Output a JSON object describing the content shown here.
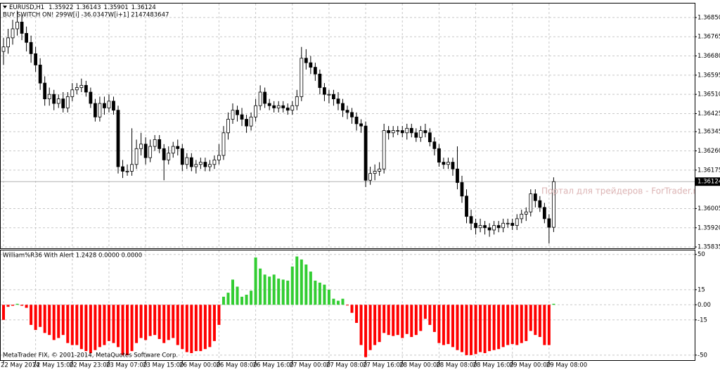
{
  "chart_data": [
    {
      "type": "candlestick",
      "symbol": "EURUSD,H1",
      "subtitle": "BUY SWITCH ON! 299W[i] -36.0347W[i+1] 2147483647",
      "watermark": "Портал для трейдеров - ForTrader.ru",
      "categories": [
        "22 May 2014",
        null,
        null,
        null,
        null,
        null,
        null,
        "22 May 15:00",
        null,
        null,
        null,
        null,
        null,
        null,
        null,
        "22 May 23:00",
        null,
        null,
        null,
        null,
        null,
        null,
        null,
        "23 May 07:00",
        null,
        null,
        null,
        null,
        null,
        null,
        null,
        "23 May 15:00",
        null,
        null,
        null,
        null,
        null,
        null,
        null,
        "26 May 00:00",
        null,
        null,
        null,
        null,
        null,
        null,
        null,
        "26 May 08:00",
        null,
        null,
        null,
        null,
        null,
        null,
        null,
        "26 May 16:00",
        null,
        null,
        null,
        null,
        null,
        null,
        null,
        "27 May 00:00",
        null,
        null,
        null,
        null,
        null,
        null,
        null,
        "27 May 08:00",
        null,
        null,
        null,
        null,
        null,
        null,
        null,
        "27 May 16:00",
        null,
        null,
        null,
        null,
        null,
        null,
        null,
        "28 May 00:00",
        null,
        null,
        null,
        null,
        null,
        null,
        null,
        "28 May 08:00",
        null,
        null,
        null,
        null,
        null,
        null,
        null,
        "28 May 16:00",
        null,
        null,
        null,
        null,
        null,
        null,
        null,
        "29 May 00:00",
        null,
        null,
        null,
        null,
        null,
        null,
        null,
        "29 May 08:00",
        null
      ],
      "open": [
        1.367,
        1.3672,
        1.3676,
        1.368,
        1.3683,
        1.3678,
        1.3674,
        1.3669,
        1.3664,
        1.3656,
        1.3649,
        1.3651,
        1.3647,
        1.3649,
        1.3645,
        1.365,
        1.3653,
        1.3654,
        1.3655,
        1.3652,
        1.3647,
        1.3641,
        1.3647,
        1.3645,
        1.3648,
        1.3644,
        1.3619,
        1.3617,
        1.3617,
        1.362,
        1.3627,
        1.3629,
        1.3623,
        1.3628,
        1.3631,
        1.3627,
        1.3622,
        1.3625,
        1.3628,
        1.3627,
        1.362,
        1.3623,
        1.3619,
        1.362,
        1.3621,
        1.3619,
        1.362,
        1.3622,
        1.3624,
        1.3634,
        1.364,
        1.3644,
        1.3642,
        1.364,
        1.3637,
        1.3641,
        1.3646,
        1.3652,
        1.3647,
        1.3646,
        1.3645,
        1.3646,
        1.3645,
        1.3644,
        1.3646,
        1.365,
        1.3667,
        1.3665,
        1.3663,
        1.366,
        1.3654,
        1.3651,
        1.3651,
        1.3649,
        1.3647,
        1.3644,
        1.3643,
        1.3641,
        1.3638,
        1.3637,
        1.3613,
        1.3616,
        1.3617,
        1.3618,
        1.3635,
        1.3634,
        1.3635,
        1.3635,
        1.3634,
        1.3636,
        1.3634,
        1.3632,
        1.3635,
        1.3634,
        1.363,
        1.3627,
        1.3621,
        1.362,
        1.3621,
        1.3618,
        1.3612,
        1.3606,
        1.3597,
        1.3594,
        1.3592,
        1.3593,
        1.3592,
        1.3591,
        1.3593,
        1.3592,
        1.3594,
        1.3594,
        1.3593,
        1.3596,
        1.3598,
        1.3599,
        1.3607,
        1.3604,
        1.3601,
        1.3596,
        1.35922
      ],
      "high": [
        1.3676,
        1.368,
        1.3684,
        1.3688,
        1.3686,
        1.3681,
        1.3677,
        1.3672,
        1.3667,
        1.3659,
        1.3654,
        1.3653,
        1.3651,
        1.3652,
        1.3652,
        1.3656,
        1.3656,
        1.3658,
        1.3657,
        1.3654,
        1.3649,
        1.365,
        1.365,
        1.3651,
        1.365,
        1.3646,
        1.3622,
        1.362,
        1.3636,
        1.3631,
        1.3634,
        1.3632,
        1.3631,
        1.3633,
        1.3633,
        1.3629,
        1.3628,
        1.363,
        1.3631,
        1.3629,
        1.3625,
        1.3625,
        1.3622,
        1.3623,
        1.3623,
        1.3622,
        1.3624,
        1.3629,
        1.3637,
        1.3643,
        1.3647,
        1.3646,
        1.3645,
        1.3642,
        1.3643,
        1.3649,
        1.3655,
        1.3654,
        1.3649,
        1.3648,
        1.3648,
        1.3648,
        1.3647,
        1.3648,
        1.3653,
        1.3672,
        1.3671,
        1.3668,
        1.3665,
        1.3662,
        1.3656,
        1.3653,
        1.3653,
        1.3652,
        1.3649,
        1.3646,
        1.3645,
        1.3643,
        1.364,
        1.3639,
        1.3619,
        1.362,
        1.3621,
        1.3638,
        1.3637,
        1.3637,
        1.3637,
        1.3637,
        1.3638,
        1.3638,
        1.3636,
        1.3637,
        1.3638,
        1.3636,
        1.3632,
        1.3629,
        1.3623,
        1.3623,
        1.3623,
        1.3628,
        1.3615,
        1.3609,
        1.36,
        1.3596,
        1.3596,
        1.3595,
        1.3594,
        1.3595,
        1.3595,
        1.3596,
        1.3596,
        1.3596,
        1.3598,
        1.36,
        1.3601,
        1.3609,
        1.3609,
        1.3606,
        1.3603,
        1.3598,
        1.36143
      ],
      "low": [
        1.3664,
        1.3669,
        1.3673,
        1.3677,
        1.3675,
        1.367,
        1.3665,
        1.3661,
        1.3653,
        1.3646,
        1.3646,
        1.3644,
        1.3645,
        1.3643,
        1.3643,
        1.3648,
        1.3651,
        1.3652,
        1.365,
        1.3645,
        1.3639,
        1.3639,
        1.3642,
        1.3643,
        1.3642,
        1.3616,
        1.3614,
        1.3615,
        1.3615,
        1.3618,
        1.3624,
        1.362,
        1.3621,
        1.3626,
        1.3625,
        1.3613,
        1.362,
        1.3623,
        1.3624,
        1.3617,
        1.3618,
        1.3617,
        1.3616,
        1.3618,
        1.3617,
        1.3617,
        1.3618,
        1.362,
        1.3622,
        1.3631,
        1.3638,
        1.3639,
        1.3637,
        1.3634,
        1.3635,
        1.3639,
        1.3644,
        1.3645,
        1.3644,
        1.3643,
        1.3643,
        1.3643,
        1.3642,
        1.3642,
        1.3644,
        1.3648,
        1.3662,
        1.366,
        1.3657,
        1.3651,
        1.3648,
        1.3647,
        1.3646,
        1.3644,
        1.3641,
        1.364,
        1.3638,
        1.3635,
        1.3634,
        1.361,
        1.3611,
        1.3613,
        1.3615,
        1.3616,
        1.3631,
        1.3632,
        1.3633,
        1.3632,
        1.3631,
        1.3632,
        1.363,
        1.363,
        1.3632,
        1.3628,
        1.3624,
        1.3619,
        1.3618,
        1.3618,
        1.3615,
        1.3609,
        1.3603,
        1.3594,
        1.3591,
        1.3589,
        1.359,
        1.3589,
        1.3588,
        1.3589,
        1.359,
        1.359,
        1.3592,
        1.3591,
        1.3591,
        1.3594,
        1.3595,
        1.3597,
        1.3601,
        1.3599,
        1.3594,
        1.3585,
        1.35901
      ],
      "close": [
        1.3672,
        1.3676,
        1.368,
        1.3683,
        1.3678,
        1.3674,
        1.3669,
        1.3664,
        1.3656,
        1.3649,
        1.3651,
        1.3647,
        1.3649,
        1.3645,
        1.365,
        1.3653,
        1.3654,
        1.3655,
        1.3652,
        1.3647,
        1.3641,
        1.3647,
        1.3645,
        1.3648,
        1.3644,
        1.3619,
        1.3617,
        1.3617,
        1.362,
        1.3627,
        1.3629,
        1.3623,
        1.3628,
        1.3631,
        1.3627,
        1.3622,
        1.3625,
        1.3628,
        1.3627,
        1.362,
        1.3623,
        1.3619,
        1.362,
        1.3621,
        1.3619,
        1.362,
        1.3622,
        1.3624,
        1.3634,
        1.364,
        1.3644,
        1.3642,
        1.364,
        1.3637,
        1.3641,
        1.3646,
        1.3652,
        1.3647,
        1.3646,
        1.3645,
        1.3646,
        1.3645,
        1.3644,
        1.3646,
        1.365,
        1.3667,
        1.3665,
        1.3663,
        1.366,
        1.3654,
        1.3651,
        1.3651,
        1.3649,
        1.3647,
        1.3644,
        1.3643,
        1.3641,
        1.3638,
        1.3637,
        1.3613,
        1.3616,
        1.3617,
        1.3618,
        1.3635,
        1.3634,
        1.3635,
        1.3635,
        1.3634,
        1.3636,
        1.3634,
        1.3632,
        1.3635,
        1.3634,
        1.363,
        1.3627,
        1.3621,
        1.362,
        1.3621,
        1.3618,
        1.3612,
        1.3606,
        1.3597,
        1.3594,
        1.3592,
        1.3593,
        1.3592,
        1.3591,
        1.3593,
        1.3592,
        1.3594,
        1.3594,
        1.3593,
        1.3596,
        1.3598,
        1.3599,
        1.3607,
        1.3604,
        1.3601,
        1.3596,
        1.35922,
        1.36124
      ],
      "up_color": "#ffffff",
      "down_color": "#000000",
      "ylim": [
        1.35829,
        1.36912
      ],
      "yticks": [
        {
          "value": 1.3685,
          "label": "1.36850"
        },
        1.36765,
        {
          "value": 1.3668,
          "label": "1.36680"
        },
        1.36595,
        {
          "value": 1.3651,
          "label": "1.36510"
        },
        1.36425,
        1.36345,
        {
          "value": 1.3626,
          "label": "1.36260"
        },
        1.36175,
        1.36005,
        {
          "value": 1.3592,
          "label": "1.35920"
        },
        1.35835
      ],
      "grid": true
    },
    {
      "type": "bar",
      "title": "William%R36 With Alert 1.2428 0.0000 0.0000",
      "annotation": "MetaTrader FIX, © 2001-2014, MetaQuotes Software Corp.",
      "values": [
        -15,
        -2,
        -1,
        1,
        -1,
        -3,
        -20,
        -25,
        -22,
        -28,
        -30,
        -35,
        -33,
        -30,
        -38,
        -40,
        -40,
        -44,
        -46,
        -48,
        -45,
        -42,
        -40,
        -36,
        -38,
        -42,
        -50,
        -50,
        -46,
        -38,
        -33,
        -35,
        -31,
        -30,
        -34,
        -38,
        -35,
        -33,
        -40,
        -44,
        -47,
        -48,
        -46,
        -46,
        -44,
        -42,
        -36,
        -20,
        8,
        12,
        25,
        18,
        8,
        10,
        14,
        47,
        36,
        30,
        28,
        30,
        26,
        25,
        24,
        38,
        48,
        45,
        40,
        33,
        24,
        22,
        20,
        15,
        6,
        4,
        6,
        0,
        -8,
        -18,
        -40,
        -52,
        -45,
        -40,
        -37,
        -28,
        -30,
        -31,
        -30,
        -33,
        -29,
        -32,
        -30,
        -26,
        -14,
        -20,
        -27,
        -38,
        -40,
        -39,
        -42,
        -45,
        -47,
        -50,
        -50,
        -49,
        -47,
        -48,
        -46,
        -45,
        -44,
        -42,
        -40,
        -39,
        -40,
        -38,
        -36,
        -26,
        -30,
        -32,
        -40,
        -40,
        1
      ],
      "positive_color": "#32cd32",
      "negative_color": "#ff0000",
      "ylim": [
        -55,
        54
      ],
      "yticks": [
        50,
        15,
        {
          "value": 0,
          "label": "0.00"
        },
        -15,
        -50
      ],
      "grid": true
    }
  ]
}
